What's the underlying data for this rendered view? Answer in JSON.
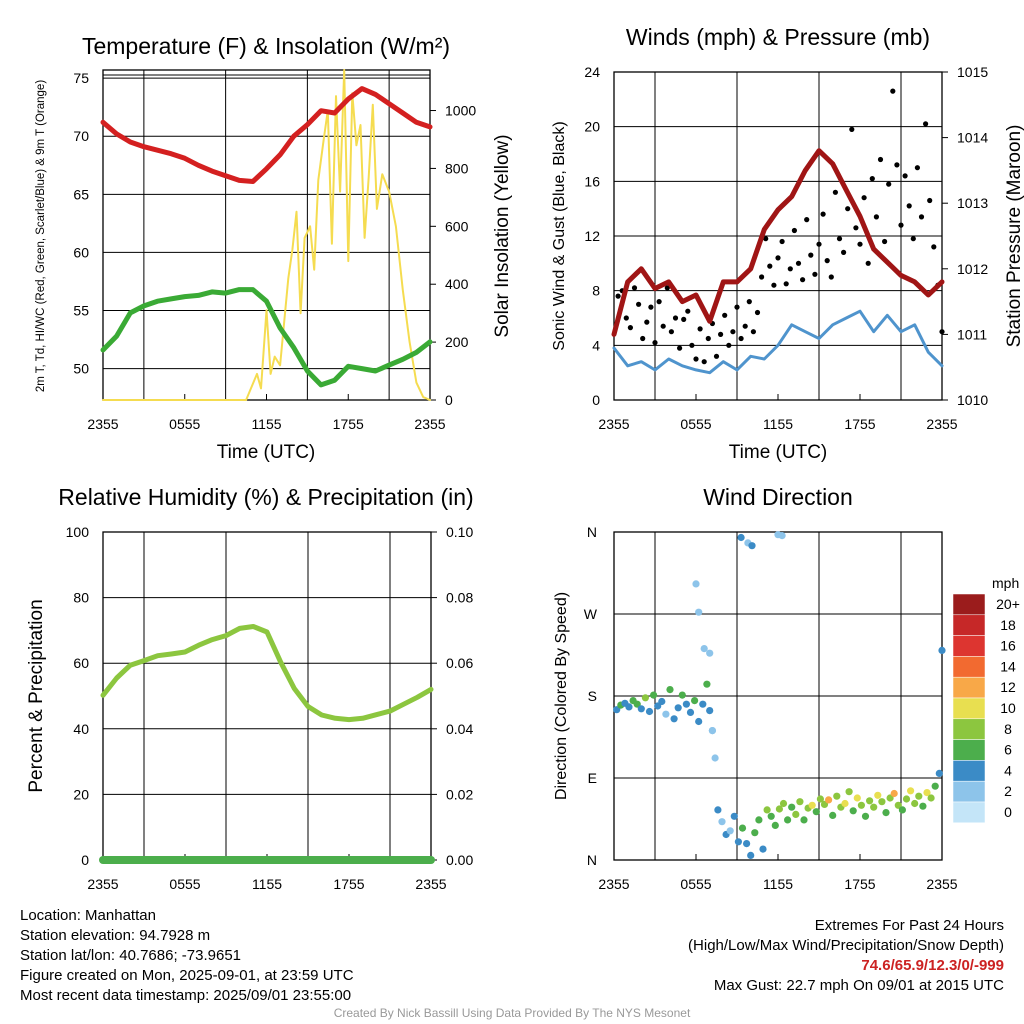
{
  "chart_data": [
    {
      "type": "line",
      "title": "Temperature (F) & Insolation (W/m²)",
      "ylabel": "2m T, Td, HI/WC (Red, Green, Scarlet/Blue) & 9m T (Orange)",
      "ylabel2": "Solar Insolation (Yellow)",
      "xlabel": "Time (UTC)",
      "x_ticks": [
        "2355",
        "0555",
        "1155",
        "1755",
        "2355"
      ],
      "y_ticks": [
        50,
        55,
        60,
        65,
        70,
        75
      ],
      "y2_ticks": [
        0,
        200,
        400,
        600,
        800,
        1000
      ],
      "ylim": [
        47.3,
        75.7
      ],
      "y2lim": [
        0,
        1140
      ],
      "x_hours": [
        0,
        1,
        2,
        3,
        4,
        5,
        6,
        7,
        8,
        9,
        10,
        11,
        12,
        13,
        14,
        15,
        16,
        17,
        18,
        19,
        20,
        21,
        22,
        23,
        24
      ],
      "series": [
        {
          "color": "#d42020",
          "axis": "left",
          "values": [
            71.2,
            70.2,
            69.5,
            69.1,
            68.8,
            68.5,
            68.1,
            67.5,
            67.0,
            66.6,
            66.2,
            66.1,
            67.2,
            68.4,
            70.0,
            71.0,
            72.2,
            72.0,
            73.2,
            74.1,
            73.6,
            72.8,
            72.0,
            71.2,
            70.8
          ]
        },
        {
          "color": "#3aaa35",
          "axis": "left",
          "values": [
            51.6,
            52.8,
            54.8,
            55.4,
            55.8,
            56.0,
            56.2,
            56.3,
            56.6,
            56.5,
            56.8,
            56.8,
            55.8,
            53.5,
            51.8,
            49.8,
            48.6,
            49.0,
            50.2,
            50.0,
            49.8,
            50.3,
            50.8,
            51.4,
            52.3
          ]
        }
      ],
      "insolation": {
        "color": "#f5dc50",
        "x_hours": [
          0,
          10.5,
          11.3,
          11.6,
          12.0,
          12.3,
          12.6,
          13.0,
          13.6,
          13.9,
          14.2,
          14.5,
          14.8,
          15.2,
          15.5,
          15.8,
          16.2,
          16.5,
          16.8,
          17.1,
          17.4,
          17.7,
          18.0,
          18.3,
          18.6,
          18.9,
          19.2,
          19.5,
          19.8,
          20.1,
          20.5,
          21.0,
          21.5,
          22.0,
          22.5,
          23.0,
          23.5,
          24.0
        ],
        "values": [
          0,
          0,
          90,
          40,
          310,
          90,
          150,
          120,
          420,
          520,
          650,
          300,
          560,
          600,
          450,
          760,
          900,
          1000,
          540,
          1050,
          720,
          1140,
          480,
          1060,
          880,
          950,
          560,
          770,
          1020,
          660,
          780,
          720,
          600,
          380,
          200,
          60,
          10,
          0
        ]
      }
    },
    {
      "type": "line",
      "title": "Winds (mph) & Pressure (mb)",
      "ylabel": "Sonic Wind & Gust (Blue, Black)",
      "ylabel2": "Station Pressure (Maroon)",
      "xlabel": "Time (UTC)",
      "x_ticks": [
        "2355",
        "0555",
        "1155",
        "1755",
        "2355"
      ],
      "y_ticks": [
        0,
        4,
        8,
        12,
        16,
        20,
        24
      ],
      "y2_ticks": [
        1010,
        1011,
        1012,
        1013,
        1014,
        1015
      ],
      "ylim": [
        0,
        24
      ],
      "y2lim": [
        1010,
        1015
      ],
      "pressure": {
        "color": "#a01515",
        "x_hours": [
          0,
          1,
          2,
          3,
          4,
          5,
          6,
          7,
          8,
          9,
          10,
          11,
          12,
          13,
          14,
          15,
          16,
          17,
          18,
          19,
          20,
          21,
          22,
          23,
          24
        ],
        "values": [
          1011.0,
          1011.8,
          1012.0,
          1011.7,
          1011.8,
          1011.5,
          1011.6,
          1011.2,
          1011.8,
          1011.8,
          1012.0,
          1012.6,
          1012.9,
          1013.1,
          1013.5,
          1013.8,
          1013.6,
          1013.2,
          1012.8,
          1012.3,
          1012.1,
          1011.9,
          1011.8,
          1011.6,
          1011.8
        ]
      },
      "wind": {
        "color": "#4f94cd",
        "x_hours": [
          0,
          1,
          2,
          3,
          4,
          5,
          6,
          7,
          8,
          9,
          10,
          11,
          12,
          13,
          14,
          15,
          16,
          17,
          18,
          19,
          20,
          21,
          22,
          23,
          24
        ],
        "values": [
          3.8,
          2.5,
          2.8,
          2.2,
          3.0,
          2.5,
          2.2,
          2.0,
          2.8,
          2.2,
          3.2,
          3.0,
          4.0,
          5.5,
          5.0,
          4.5,
          5.5,
          6.0,
          6.5,
          5.0,
          6.2,
          5.0,
          5.5,
          3.5,
          2.5
        ]
      },
      "gust_points": [
        [
          0.3,
          7.6
        ],
        [
          0.6,
          8.0
        ],
        [
          0.9,
          6.0
        ],
        [
          1.2,
          5.3
        ],
        [
          1.5,
          8.2
        ],
        [
          1.8,
          7.0
        ],
        [
          2.1,
          4.5
        ],
        [
          2.4,
          5.7
        ],
        [
          2.7,
          6.8
        ],
        [
          3.0,
          4.2
        ],
        [
          3.3,
          7.2
        ],
        [
          3.6,
          5.4
        ],
        [
          3.9,
          8.2
        ],
        [
          4.2,
          5.0
        ],
        [
          4.5,
          6.0
        ],
        [
          4.8,
          3.8
        ],
        [
          5.1,
          5.9
        ],
        [
          5.4,
          6.5
        ],
        [
          5.7,
          4.0
        ],
        [
          6.0,
          3.0
        ],
        [
          6.3,
          5.2
        ],
        [
          6.6,
          2.8
        ],
        [
          6.9,
          4.5
        ],
        [
          7.2,
          5.6
        ],
        [
          7.5,
          3.2
        ],
        [
          7.8,
          4.8
        ],
        [
          8.1,
          6.2
        ],
        [
          8.4,
          4.0
        ],
        [
          8.7,
          5.0
        ],
        [
          9.0,
          6.8
        ],
        [
          9.3,
          4.5
        ],
        [
          9.6,
          5.4
        ],
        [
          9.9,
          7.2
        ],
        [
          10.2,
          5.0
        ],
        [
          10.5,
          6.4
        ],
        [
          10.8,
          9.0
        ],
        [
          11.1,
          11.8
        ],
        [
          11.4,
          9.8
        ],
        [
          11.7,
          8.4
        ],
        [
          12.0,
          10.4
        ],
        [
          12.3,
          11.6
        ],
        [
          12.6,
          8.5
        ],
        [
          12.9,
          9.6
        ],
        [
          13.2,
          12.4
        ],
        [
          13.5,
          10.0
        ],
        [
          13.8,
          8.8
        ],
        [
          14.1,
          13.2
        ],
        [
          14.4,
          10.6
        ],
        [
          14.7,
          9.2
        ],
        [
          15.0,
          11.4
        ],
        [
          15.3,
          13.6
        ],
        [
          15.6,
          10.2
        ],
        [
          15.9,
          9.0
        ],
        [
          16.2,
          15.2
        ],
        [
          16.5,
          11.8
        ],
        [
          16.8,
          10.8
        ],
        [
          17.1,
          14.0
        ],
        [
          17.4,
          19.8
        ],
        [
          17.7,
          12.6
        ],
        [
          18.0,
          11.4
        ],
        [
          18.3,
          14.8
        ],
        [
          18.6,
          10.0
        ],
        [
          18.9,
          16.2
        ],
        [
          19.2,
          13.4
        ],
        [
          19.5,
          17.6
        ],
        [
          19.8,
          11.6
        ],
        [
          20.1,
          15.8
        ],
        [
          20.4,
          22.6
        ],
        [
          20.7,
          17.2
        ],
        [
          21.0,
          12.8
        ],
        [
          21.3,
          16.4
        ],
        [
          21.6,
          14.2
        ],
        [
          21.9,
          11.8
        ],
        [
          22.2,
          17.0
        ],
        [
          22.5,
          13.4
        ],
        [
          22.8,
          20.2
        ],
        [
          23.1,
          14.6
        ],
        [
          23.4,
          11.2
        ],
        [
          23.7,
          8.4
        ],
        [
          24.0,
          5.0
        ]
      ]
    },
    {
      "type": "line",
      "title": "Relative Humidity (%) & Precipitation (in)",
      "ylabel": "Percent & Precipitation",
      "x_ticks": [
        "2355",
        "0555",
        "1155",
        "1755",
        "2355"
      ],
      "y_ticks": [
        0,
        20,
        40,
        60,
        80,
        100
      ],
      "y2_ticks": [
        "0.00",
        "0.02",
        "0.04",
        "0.06",
        "0.08",
        "0.10"
      ],
      "ylim": [
        0,
        100
      ],
      "y2lim": [
        0,
        0.1
      ],
      "series": [
        {
          "color": "#8cc63f",
          "axis": "left",
          "x_hours": [
            0,
            1,
            2,
            3,
            4,
            5,
            6,
            7,
            8,
            9,
            10,
            11,
            12,
            13,
            14,
            15,
            16,
            17,
            18,
            19,
            20,
            21,
            22,
            23,
            24
          ],
          "values": [
            50.2,
            55.5,
            59.4,
            60.8,
            62.3,
            62.8,
            63.4,
            65.5,
            67.2,
            68.4,
            70.6,
            71.2,
            69.5,
            60.3,
            52.3,
            46.8,
            44.2,
            43.2,
            42.8,
            43.2,
            44.3,
            45.4,
            47.5,
            49.6,
            52.0
          ]
        },
        {
          "color": "#4cae4c",
          "axis": "right",
          "x_hours": [
            0,
            24
          ],
          "values": [
            0,
            0
          ]
        }
      ]
    },
    {
      "type": "scatter",
      "title": "Wind Direction",
      "ylabel": "Direction (Colored By Speed)",
      "x_ticks": [
        "2355",
        "0555",
        "1155",
        "1755",
        "2355"
      ],
      "y_ticks": [
        "N",
        "E",
        "S",
        "W",
        "N"
      ],
      "ylim": [
        0,
        360
      ],
      "legend": {
        "title": "mph",
        "labels": [
          "20+",
          "18",
          "16",
          "14",
          "12",
          "10",
          "8",
          "6",
          "4",
          "2",
          "0"
        ],
        "colors": [
          "#9b1c1c",
          "#c62828",
          "#dd3530",
          "#f26a30",
          "#f8a848",
          "#e8df50",
          "#8cc63f",
          "#4cae4c",
          "#3b8bc6",
          "#8dc4ea",
          "#c4e5f8"
        ]
      },
      "points_dir": [
        [
          0.2,
          165
        ],
        [
          0.5,
          170
        ],
        [
          0.8,
          172
        ],
        [
          1.1,
          168
        ],
        [
          1.4,
          175
        ],
        [
          1.7,
          171
        ],
        [
          2.0,
          166
        ],
        [
          2.3,
          178
        ],
        [
          2.6,
          163
        ],
        [
          2.9,
          181
        ],
        [
          3.2,
          169
        ],
        [
          3.5,
          174
        ],
        [
          3.8,
          160
        ],
        [
          4.1,
          187
        ],
        [
          4.4,
          155
        ],
        [
          4.7,
          167
        ],
        [
          5.0,
          181
        ],
        [
          5.3,
          171
        ],
        [
          5.6,
          162
        ],
        [
          5.9,
          175
        ],
        [
          6.2,
          152
        ],
        [
          6.5,
          171
        ],
        [
          6.8,
          193
        ],
        [
          7.0,
          164
        ],
        [
          7.2,
          142
        ],
        [
          6.0,
          303
        ],
        [
          6.2,
          272
        ],
        [
          6.6,
          232
        ],
        [
          7.0,
          227
        ],
        [
          7.2,
          142
        ],
        [
          7.4,
          112
        ],
        [
          7.6,
          55
        ],
        [
          7.9,
          42
        ],
        [
          8.2,
          28
        ],
        [
          8.5,
          32
        ],
        [
          8.8,
          48
        ],
        [
          9.1,
          20
        ],
        [
          9.4,
          35
        ],
        [
          9.7,
          18
        ],
        [
          10.0,
          5
        ],
        [
          10.3,
          30
        ],
        [
          10.6,
          44
        ],
        [
          10.9,
          12
        ],
        [
          11.2,
          55
        ],
        [
          11.5,
          48
        ],
        [
          11.8,
          38
        ],
        [
          12.1,
          56
        ],
        [
          12.4,
          62
        ],
        [
          12.7,
          44
        ],
        [
          13.0,
          58
        ],
        [
          13.3,
          50
        ],
        [
          13.6,
          64
        ],
        [
          13.9,
          44
        ],
        [
          14.2,
          57
        ],
        [
          14.5,
          60
        ],
        [
          14.8,
          53
        ],
        [
          15.1,
          67
        ],
        [
          15.4,
          61
        ],
        [
          15.7,
          66
        ],
        [
          16.0,
          49
        ],
        [
          16.3,
          70
        ],
        [
          16.6,
          58
        ],
        [
          16.9,
          62
        ],
        [
          17.2,
          75
        ],
        [
          17.5,
          54
        ],
        [
          17.8,
          68
        ],
        [
          18.1,
          60
        ],
        [
          18.4,
          48
        ],
        [
          18.7,
          65
        ],
        [
          19.0,
          58
        ],
        [
          19.3,
          71
        ],
        [
          19.6,
          64
        ],
        [
          19.9,
          52
        ],
        [
          20.2,
          68
        ],
        [
          20.5,
          73
        ],
        [
          20.8,
          60
        ],
        [
          21.1,
          55
        ],
        [
          21.4,
          67
        ],
        [
          21.7,
          76
        ],
        [
          22.0,
          62
        ],
        [
          22.3,
          70
        ],
        [
          22.6,
          59
        ],
        [
          22.9,
          74
        ],
        [
          23.2,
          68
        ],
        [
          23.5,
          81
        ],
        [
          23.8,
          95
        ],
        [
          24.0,
          230
        ],
        [
          9.3,
          354
        ],
        [
          9.8,
          348
        ],
        [
          10.1,
          345
        ],
        [
          12.0,
          357
        ],
        [
          12.3,
          356
        ]
      ],
      "points_speed": [
        4,
        5,
        4,
        4,
        6,
        5,
        4,
        7,
        3,
        5,
        4,
        4,
        2,
        5,
        3,
        4,
        6,
        4,
        4,
        5,
        3,
        4,
        6,
        4,
        2,
        2,
        1,
        1,
        1,
        2,
        1,
        4,
        2,
        3,
        2,
        4,
        3,
        5,
        4,
        3,
        5,
        6,
        4,
        7,
        6,
        5,
        7,
        8,
        5,
        6,
        7,
        8,
        6,
        7,
        9,
        6,
        8,
        7,
        12,
        6,
        8,
        7,
        9,
        8,
        6,
        10,
        7,
        6,
        8,
        7,
        9,
        8,
        6,
        7,
        11,
        7,
        6,
        8,
        9,
        7,
        8,
        6,
        9,
        7,
        6,
        4,
        4,
        3,
        2,
        3,
        2,
        2
      ]
    }
  ],
  "footer": {
    "location": "Location: Manhattan",
    "elevation": "Station elevation: 94.7928 m",
    "latlon": "Station lat/lon: 40.7686; -73.9651",
    "created": "Figure created on Mon, 2025-09-01, at 23:59 UTC",
    "recent": "Most recent data timestamp: 2025/09/01 23:55:00",
    "extremes_title": "Extremes For Past 24 Hours",
    "extremes_sub": "(High/Low/Max Wind/Precipitation/Snow Depth)",
    "extremes_values": "74.6/65.9/12.3/0/-999",
    "max_gust": "Max Gust: 22.7 mph On 09/01 at 2015 UTC",
    "credit": "Created By Nick Bassill Using Data Provided By The NYS Mesonet"
  }
}
